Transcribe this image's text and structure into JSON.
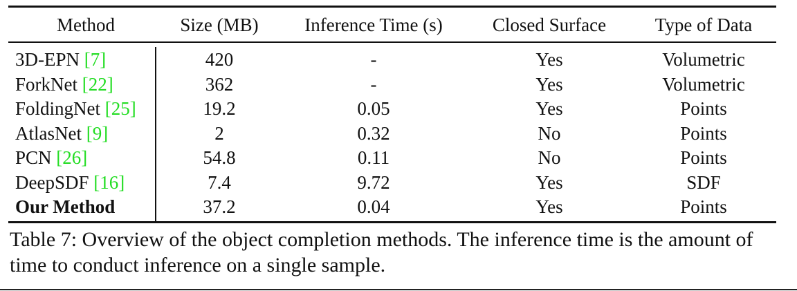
{
  "table": {
    "headers": [
      "Method",
      "Size (MB)",
      "Inference Time (s)",
      "Closed Surface",
      "Type of Data"
    ],
    "rows": [
      {
        "method": "3D-EPN",
        "ref": "7",
        "size": "420",
        "time": "-",
        "closed": "Yes",
        "type": "Volumetric"
      },
      {
        "method": "ForkNet",
        "ref": "22",
        "size": "362",
        "time": "-",
        "closed": "Yes",
        "type": "Volumetric"
      },
      {
        "method": "FoldingNet",
        "ref": "25",
        "size": "19.2",
        "time": "0.05",
        "closed": "Yes",
        "type": "Points"
      },
      {
        "method": "AtlasNet",
        "ref": "9",
        "size": "2",
        "time": "0.32",
        "closed": "No",
        "type": "Points"
      },
      {
        "method": "PCN",
        "ref": "26",
        "size": "54.8",
        "time": "0.11",
        "closed": "No",
        "type": "Points"
      },
      {
        "method": "DeepSDF",
        "ref": "16",
        "size": "7.4",
        "time": "9.72",
        "closed": "Yes",
        "type": "SDF"
      },
      {
        "method": "Our Method",
        "ref": "",
        "size": "37.2",
        "time": "0.04",
        "closed": "Yes",
        "type": "Points"
      }
    ],
    "ref_color": "#22dd22"
  },
  "caption": "Table 7: Overview of the object completion methods. The inference time is the amount of time to conduct inference on a single sample."
}
